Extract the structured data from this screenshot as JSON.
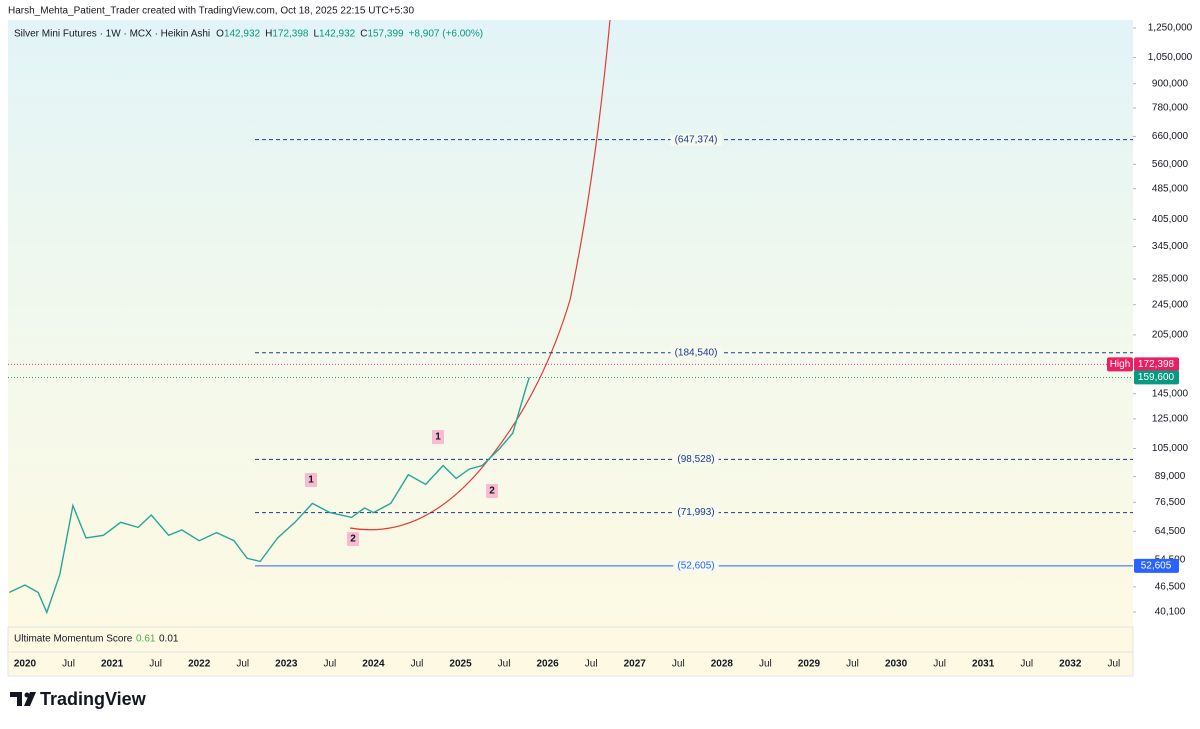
{
  "header": {
    "caption": "Harsh_Mehta_Patient_Trader created with TradingView.com, Oct 18, 2025 22:15 UTC+5:30"
  },
  "legend": {
    "symbol": "Silver Mini Futures · 1W · MCX · Heikin Ashi",
    "ohlc": [
      {
        "label": "O",
        "value": "142,932"
      },
      {
        "label": "H",
        "value": "172,398"
      },
      {
        "label": "L",
        "value": "142,932"
      },
      {
        "label": "C",
        "value": "157,399"
      }
    ],
    "change": "+8,907 (+6.00%)"
  },
  "chart_data": {
    "type": "line",
    "color": "#26a69a",
    "log_scale": true,
    "x": [
      2019.82,
      2020.0,
      2020.15,
      2020.25,
      2020.4,
      2020.55,
      2020.7,
      2020.9,
      2021.1,
      2021.3,
      2021.45,
      2021.65,
      2021.8,
      2022.0,
      2022.2,
      2022.4,
      2022.55,
      2022.7,
      2022.9,
      2023.1,
      2023.3,
      2023.5,
      2023.75,
      2023.9,
      2024.0,
      2024.2,
      2024.4,
      2024.6,
      2024.8,
      2024.95,
      2025.1,
      2025.25,
      2025.45,
      2025.6,
      2025.75,
      2025.79
    ],
    "values": [
      45000,
      47000,
      45000,
      40000,
      50000,
      75000,
      62000,
      63000,
      68000,
      66000,
      71000,
      63000,
      65000,
      61000,
      64000,
      61000,
      55000,
      54000,
      62000,
      68000,
      76000,
      72000,
      70000,
      74000,
      72000,
      76000,
      90000,
      85000,
      95000,
      88000,
      93000,
      95000,
      105000,
      115000,
      150000,
      159600
    ],
    "ylim": [
      36700,
      1310000
    ],
    "xlim": [
      2019.805,
      2032.72
    ],
    "yticks": [
      {
        "value": 1250000,
        "label": "1,250,000"
      },
      {
        "value": 1050000,
        "label": "1,050,000"
      },
      {
        "value": 900000,
        "label": "900,000"
      },
      {
        "value": 780000,
        "label": "780,000"
      },
      {
        "value": 660000,
        "label": "660,000"
      },
      {
        "value": 560000,
        "label": "560,000"
      },
      {
        "value": 485000,
        "label": "485,000"
      },
      {
        "value": 405000,
        "label": "405,000"
      },
      {
        "value": 345000,
        "label": "345,000"
      },
      {
        "value": 285000,
        "label": "285,000"
      },
      {
        "value": 245000,
        "label": "245,000"
      },
      {
        "value": 205000,
        "label": "205,000"
      },
      {
        "value": 145000,
        "label": "145,000"
      },
      {
        "value": 125000,
        "label": "125,000"
      },
      {
        "value": 105000,
        "label": "105,000"
      },
      {
        "value": 89000,
        "label": "89,000"
      },
      {
        "value": 76500,
        "label": "76,500"
      },
      {
        "value": 64500,
        "label": "64,500"
      },
      {
        "value": 54500,
        "label": "54,500"
      },
      {
        "value": 46500,
        "label": "46,500"
      },
      {
        "value": 40100,
        "label": "40,100"
      }
    ],
    "xticks": [
      2020,
      {
        "value": 2020.5,
        "label": "Jul"
      },
      2021,
      {
        "value": 2021.5,
        "label": "Jul"
      },
      2022,
      {
        "value": 2022.5,
        "label": "Jul"
      },
      2023,
      {
        "value": 2023.5,
        "label": "Jul"
      },
      2024,
      {
        "value": 2024.5,
        "label": "Jul"
      },
      2025,
      {
        "value": 2025.5,
        "label": "Jul"
      },
      2026,
      {
        "value": 2026.5,
        "label": "Jul"
      },
      2027,
      {
        "value": 2027.5,
        "label": "Jul"
      },
      2028,
      {
        "value": 2028.5,
        "label": "Jul"
      },
      2029,
      {
        "value": 2029.5,
        "label": "Jul"
      },
      2030,
      {
        "value": 2030.5,
        "label": "Jul"
      },
      2031,
      {
        "value": 2031.5,
        "label": "Jul"
      },
      2032,
      {
        "value": 2032.5,
        "label": "Jul"
      }
    ],
    "levels": [
      {
        "value": 647374,
        "label": "(647,374)",
        "color": "#1e3a8a",
        "dashed": true
      },
      {
        "value": 184540,
        "label": "(184,540)",
        "color": "#1e3a8a",
        "dashed": true
      },
      {
        "value": 98528,
        "label": "(98,528)",
        "color": "#1e3a8a",
        "dashed": true
      },
      {
        "value": 71993,
        "label": "(71,993)",
        "color": "#1e3a8a",
        "dashed": true
      },
      {
        "value": 52605,
        "label": "(52,605)",
        "color": "#2962ff",
        "dashed": false
      }
    ],
    "price_tags": [
      {
        "name": "High",
        "value": 172398,
        "label": "172,398",
        "color": "#e91e63"
      },
      {
        "value": 159600,
        "label": "159,600",
        "color": "#089981"
      },
      {
        "value": 52605,
        "label": "52,605",
        "color": "#2962ff"
      }
    ],
    "wave_labels": [
      "1",
      "2",
      "1",
      "2"
    ]
  },
  "indicator": {
    "name": "Ultimate Momentum Score",
    "values": [
      "0.61",
      "0.01"
    ]
  },
  "logo": "TradingView"
}
